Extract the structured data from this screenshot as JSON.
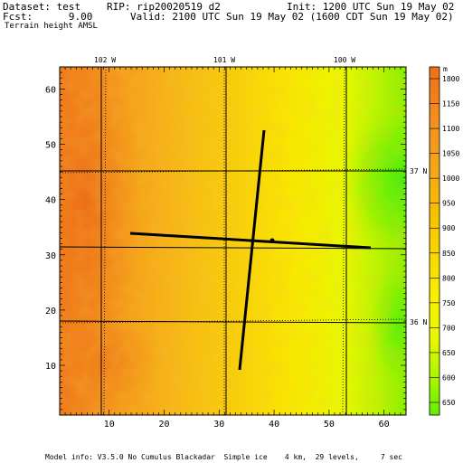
{
  "header": {
    "dataset": "Dataset: test",
    "rip": "RIP: rip20020519 d2",
    "init": "Init: 1200 UTC Sun 19 May 02",
    "fcst": "Fcst:      9.00",
    "valid": "Valid: 2100 UTC Sun 19 May 02 (1600 CDT Sun 19 May 02)",
    "field": "Terrain height AMSL"
  },
  "map": {
    "x_ticks": [
      "10",
      "20",
      "30",
      "40",
      "50",
      "60"
    ],
    "y_ticks": [
      "10",
      "20",
      "30",
      "40",
      "50",
      "60"
    ],
    "longitude_labels": [
      "102 W",
      "101 W",
      "100 W"
    ],
    "latitude_labels": [
      "37 N",
      "36 N"
    ]
  },
  "colorbar": {
    "unit": "m",
    "levels": [
      "1800",
      "1750",
      "1700",
      "1650",
      "1600",
      "1550",
      "1500",
      "1450",
      "1400",
      "1350",
      "1300",
      "1250",
      "1200",
      "1150",
      "1100",
      "1050",
      "1000",
      "950",
      "900",
      "850",
      "800",
      "750",
      "700",
      "650",
      "600",
      "550"
    ],
    "shown_labels": [
      "1800",
      "1150",
      "1100",
      "1050",
      "1000",
      "950",
      "900",
      "850",
      "800",
      "750",
      "700",
      "650",
      "600",
      "650"
    ],
    "colors": {
      "high": "#f07818",
      "mid": "#f8c800",
      "low_yellow": "#f8f800",
      "green": "#60f000"
    }
  },
  "footer": {
    "model_info": "Model info: V3.5.0 No Cumulus Blackadar  Simple ice    4 km,  29 levels,     7 sec"
  },
  "colors": {
    "axis": "#000000",
    "cross_section": "#000000"
  }
}
